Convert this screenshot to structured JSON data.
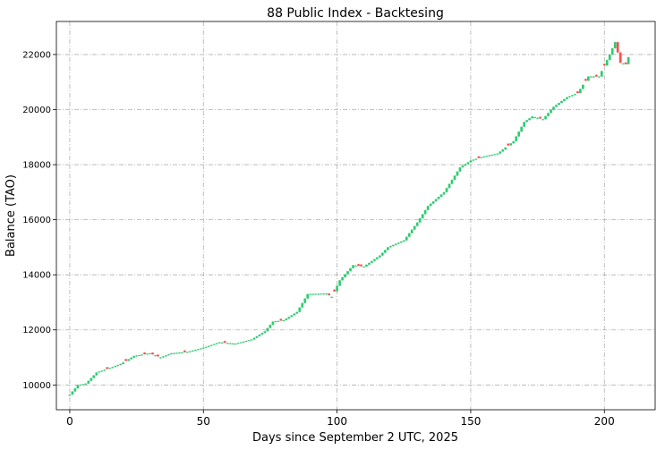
{
  "chart_data": {
    "type": "candlestick",
    "title": "88 Public Index - Backtesing",
    "xlabel": "Days since September 2 UTC, 2025",
    "ylabel": "Balance (TAO)",
    "xlim": [
      -5,
      219
    ],
    "ylim": [
      9100,
      23200
    ],
    "xticks": [
      0,
      50,
      100,
      150,
      200
    ],
    "yticks": [
      10000,
      12000,
      14000,
      16000,
      18000,
      20000,
      22000
    ],
    "xtick_labels": [
      "0",
      "50",
      "100",
      "150",
      "200"
    ],
    "ytick_labels": [
      "10000",
      "12000",
      "14000",
      "16000",
      "18000",
      "20000",
      "22000"
    ],
    "grid": true,
    "colors": {
      "up": "#2ecc71",
      "down": "#ff4d4d"
    },
    "anchors": [
      [
        0,
        9650
      ],
      [
        3,
        9990
      ],
      [
        6,
        10050
      ],
      [
        10,
        10450
      ],
      [
        16,
        10650
      ],
      [
        19,
        10760
      ],
      [
        24,
        11050
      ],
      [
        30,
        11150
      ],
      [
        34,
        11000
      ],
      [
        38,
        11150
      ],
      [
        44,
        11200
      ],
      [
        50,
        11350
      ],
      [
        56,
        11550
      ],
      [
        62,
        11500
      ],
      [
        68,
        11650
      ],
      [
        73,
        11950
      ],
      [
        76,
        12300
      ],
      [
        80,
        12350
      ],
      [
        85,
        12650
      ],
      [
        89,
        13300
      ],
      [
        96,
        13320
      ],
      [
        98,
        13200
      ],
      [
        101,
        13800
      ],
      [
        106,
        14350
      ],
      [
        110,
        14300
      ],
      [
        116,
        14700
      ],
      [
        119,
        15000
      ],
      [
        125,
        15250
      ],
      [
        130,
        15900
      ],
      [
        134,
        16500
      ],
      [
        140,
        17000
      ],
      [
        146,
        17900
      ],
      [
        150,
        18150
      ],
      [
        155,
        18300
      ],
      [
        160,
        18400
      ],
      [
        166,
        18850
      ],
      [
        170,
        19550
      ],
      [
        173,
        19750
      ],
      [
        177,
        19650
      ],
      [
        181,
        20100
      ],
      [
        186,
        20450
      ],
      [
        190,
        20600
      ],
      [
        194,
        21200
      ],
      [
        198,
        21200
      ],
      [
        202,
        22000
      ],
      [
        204,
        22450
      ],
      [
        206,
        21700
      ],
      [
        208,
        21650
      ],
      [
        209,
        21900
      ]
    ],
    "down_days": [
      14,
      21,
      28,
      31,
      33,
      43,
      58,
      79,
      97,
      99,
      108,
      109,
      153,
      164,
      176,
      190,
      193,
      197,
      200,
      205,
      206,
      208
    ],
    "n_days": 210
  }
}
